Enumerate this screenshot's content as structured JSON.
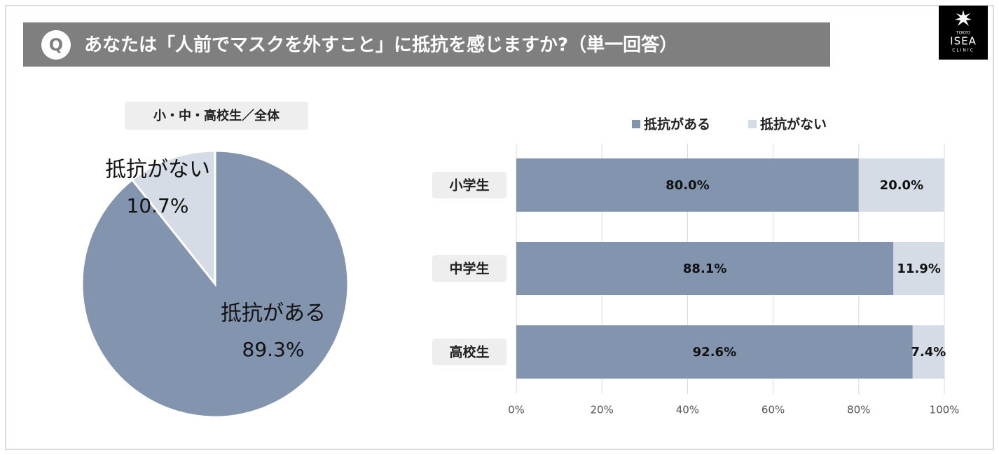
{
  "header": {
    "badge": "Q",
    "title": "あなたは「人前でマスクを外すこと」に抵抗を感じますか?（単一回答）"
  },
  "logo": {
    "top": "TOKYO",
    "name": "ISEA",
    "bottom": "CLINIC"
  },
  "chart_data": [
    {
      "type": "pie",
      "title": "小・中・高校生／全体",
      "categories": [
        "抵抗がある",
        "抵抗がない"
      ],
      "values": [
        89.3,
        10.7
      ],
      "value_labels": [
        "89.3%",
        "10.7%"
      ],
      "colors": [
        "#8395ae",
        "#d6dce5"
      ]
    },
    {
      "type": "bar",
      "orientation": "horizontal",
      "stacked": true,
      "categories": [
        "小学生",
        "中学生",
        "高校生"
      ],
      "series": [
        {
          "name": "抵抗がある",
          "color": "#8395ae",
          "values": [
            80.0,
            88.1,
            92.6
          ],
          "value_labels": [
            "80.0%",
            "88.1%",
            "92.6%"
          ]
        },
        {
          "name": "抵抗がない",
          "color": "#d6dce5",
          "values": [
            20.0,
            11.9,
            7.4
          ],
          "value_labels": [
            "20.0%",
            "11.9%",
            "7.4%"
          ]
        }
      ],
      "xlim": [
        0,
        100
      ],
      "xticks": [
        {
          "value": 0,
          "label": "0%"
        },
        {
          "value": 20,
          "label": "20%"
        },
        {
          "value": 40,
          "label": "40%"
        },
        {
          "value": 60,
          "label": "60%"
        },
        {
          "value": 80,
          "label": "80%"
        },
        {
          "value": 100,
          "label": "100%"
        }
      ],
      "grid": true,
      "legend": "top"
    }
  ]
}
